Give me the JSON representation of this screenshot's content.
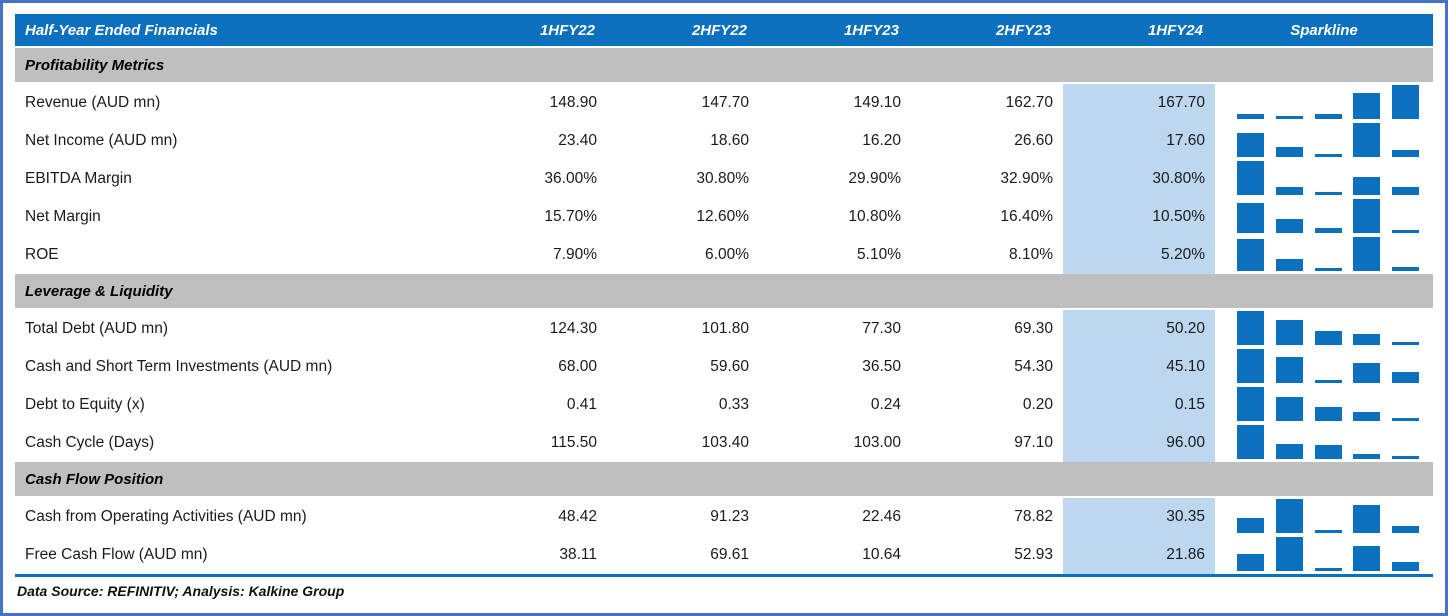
{
  "table": {
    "title": "Half-Year Ended Financials",
    "columns": [
      "1HFY22",
      "2HFY22",
      "1HFY23",
      "2HFY23",
      "1HFY24",
      "Sparkline"
    ],
    "highlighted_column": "1HFY24",
    "sections": [
      {
        "title": "Profitability Metrics",
        "rows": [
          {
            "label": "Revenue (AUD mn)",
            "values": [
              "148.90",
              "147.70",
              "149.10",
              "162.70",
              "167.70"
            ]
          },
          {
            "label": "Net Income (AUD mn)",
            "values": [
              "23.40",
              "18.60",
              "16.20",
              "26.60",
              "17.60"
            ]
          },
          {
            "label": "EBITDA Margin",
            "values": [
              "36.00%",
              "30.80%",
              "29.90%",
              "32.90%",
              "30.80%"
            ]
          },
          {
            "label": "Net Margin",
            "values": [
              "15.70%",
              "12.60%",
              "10.80%",
              "16.40%",
              "10.50%"
            ]
          },
          {
            "label": "ROE",
            "values": [
              "7.90%",
              "6.00%",
              "5.10%",
              "8.10%",
              "5.20%"
            ]
          }
        ]
      },
      {
        "title": "Leverage & Liquidity",
        "rows": [
          {
            "label": "Total Debt (AUD mn)",
            "values": [
              "124.30",
              "101.80",
              "77.30",
              "69.30",
              "50.20"
            ]
          },
          {
            "label": "Cash and Short Term Investments (AUD mn)",
            "values": [
              "68.00",
              "59.60",
              "36.50",
              "54.30",
              "45.10"
            ]
          },
          {
            "label": "Debt to Equity (x)",
            "values": [
              "0.41",
              "0.33",
              "0.24",
              "0.20",
              "0.15"
            ]
          },
          {
            "label": "Cash Cycle (Days)",
            "values": [
              "115.50",
              "103.40",
              "103.00",
              "97.10",
              "96.00"
            ]
          }
        ]
      },
      {
        "title": "Cash Flow Position",
        "rows": [
          {
            "label": "Cash from Operating Activities (AUD mn)",
            "values": [
              "48.42",
              "91.23",
              "22.46",
              "78.82",
              "30.35"
            ]
          },
          {
            "label": "Free Cash Flow (AUD mn)",
            "values": [
              "38.11",
              "69.61",
              "10.64",
              "52.93",
              "21.86"
            ]
          }
        ]
      }
    ]
  },
  "footer": {
    "text": "Data Source: REFINITIV; Analysis: Kalkine Group"
  },
  "colors": {
    "header_bg": "#0B70BE",
    "section_bg": "#BFBFBF",
    "highlight_bg": "#BDD7EE",
    "sparkline_bar": "#0B70BE",
    "frame_border": "#4472C4",
    "footer_rule": "#0B70BE"
  },
  "chart_data": {
    "type": "table",
    "title": "Half-Year Ended Financials",
    "categories": [
      "1HFY22",
      "2HFY22",
      "1HFY23",
      "2HFY23",
      "1HFY24"
    ],
    "highlighted_category": "1HFY24",
    "sparkline_type": "bar",
    "sparkline_scaling": "per-row min-max",
    "sections": [
      {
        "name": "Profitability Metrics",
        "series": [
          {
            "name": "Revenue (AUD mn)",
            "values": [
              148.9,
              147.7,
              149.1,
              162.7,
              167.7
            ]
          },
          {
            "name": "Net Income (AUD mn)",
            "values": [
              23.4,
              18.6,
              16.2,
              26.6,
              17.6
            ]
          },
          {
            "name": "EBITDA Margin (%)",
            "values": [
              36.0,
              30.8,
              29.9,
              32.9,
              30.8
            ]
          },
          {
            "name": "Net Margin (%)",
            "values": [
              15.7,
              12.6,
              10.8,
              16.4,
              10.5
            ]
          },
          {
            "name": "ROE (%)",
            "values": [
              7.9,
              6.0,
              5.1,
              8.1,
              5.2
            ]
          }
        ]
      },
      {
        "name": "Leverage & Liquidity",
        "series": [
          {
            "name": "Total Debt (AUD mn)",
            "values": [
              124.3,
              101.8,
              77.3,
              69.3,
              50.2
            ]
          },
          {
            "name": "Cash and Short Term Investments (AUD mn)",
            "values": [
              68.0,
              59.6,
              36.5,
              54.3,
              45.1
            ]
          },
          {
            "name": "Debt to Equity (x)",
            "values": [
              0.41,
              0.33,
              0.24,
              0.2,
              0.15
            ]
          },
          {
            "name": "Cash Cycle (Days)",
            "values": [
              115.5,
              103.4,
              103.0,
              97.1,
              96.0
            ]
          }
        ]
      },
      {
        "name": "Cash Flow Position",
        "series": [
          {
            "name": "Cash from Operating Activities (AUD mn)",
            "values": [
              48.42,
              91.23,
              22.46,
              78.82,
              30.35
            ]
          },
          {
            "name": "Free Cash Flow (AUD mn)",
            "values": [
              38.11,
              69.61,
              10.64,
              52.93,
              21.86
            ]
          }
        ]
      }
    ],
    "source_note": "Data Source: REFINITIV; Analysis: Kalkine Group"
  }
}
